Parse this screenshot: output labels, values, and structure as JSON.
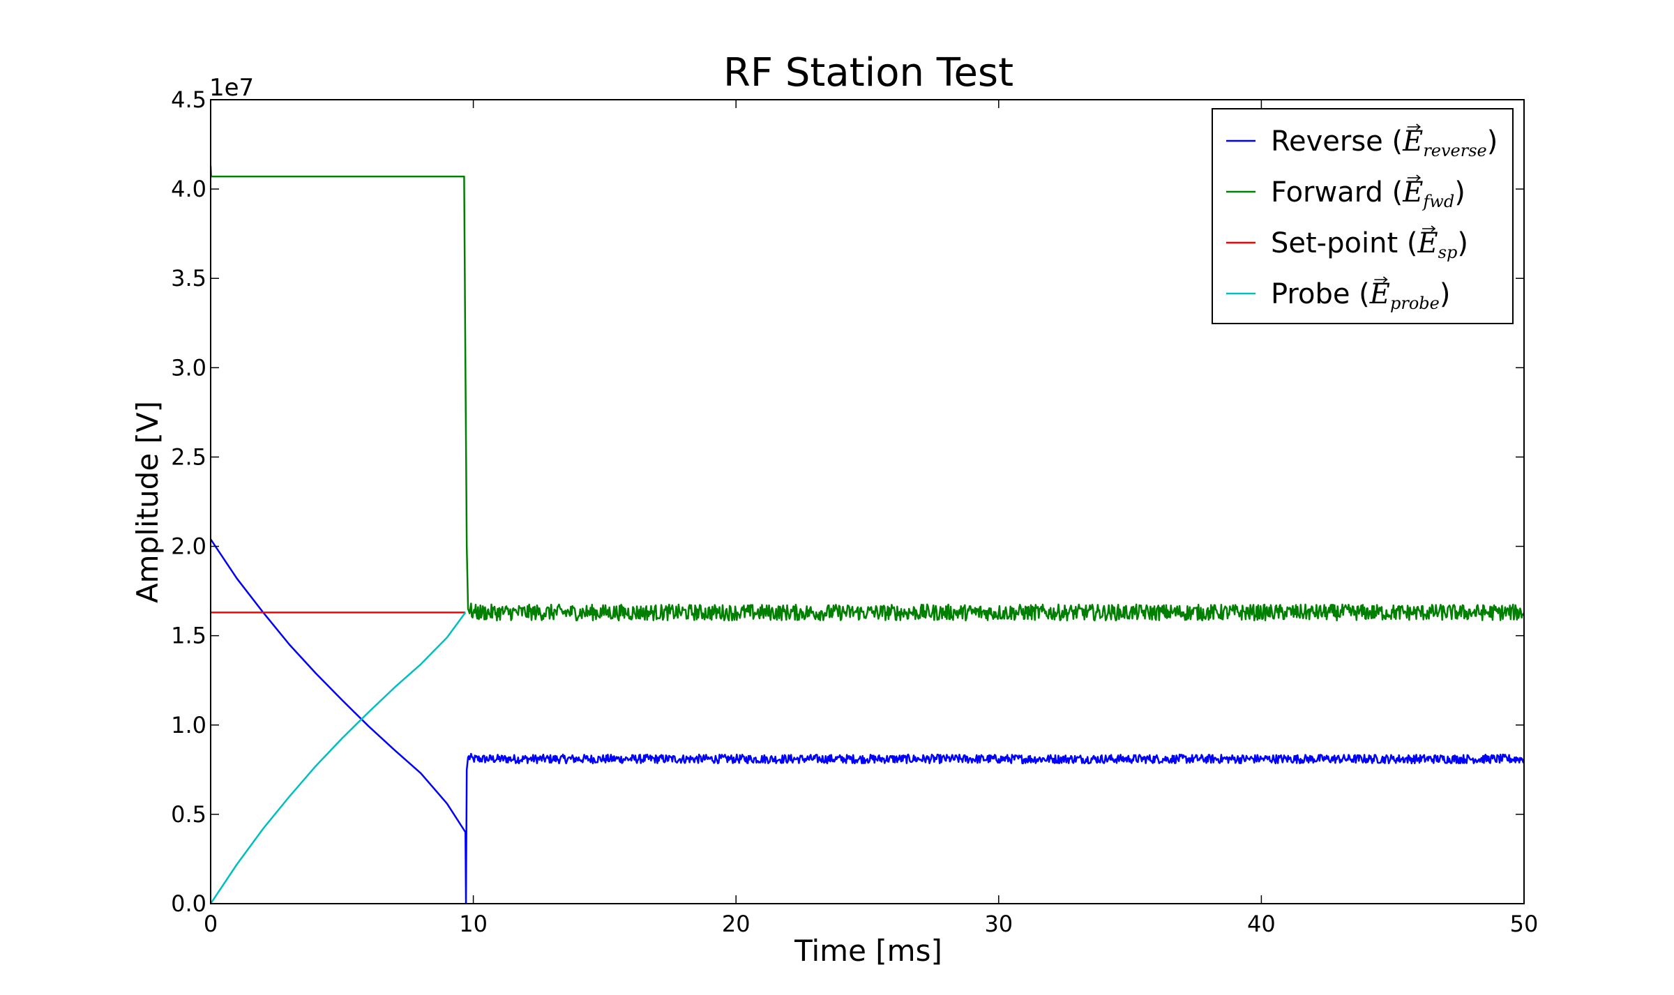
{
  "chart_data": {
    "type": "line",
    "title": "RF Station Test",
    "xlabel": "Time [ms]",
    "ylabel": "Amplitude [V]",
    "y_offset_text": "1e7",
    "xlim": [
      0,
      50
    ],
    "ylim": [
      0,
      45000000
    ],
    "x_ticks": [
      0,
      10,
      20,
      30,
      40,
      50
    ],
    "x_tick_labels": [
      "0",
      "10",
      "20",
      "30",
      "40",
      "50"
    ],
    "y_ticks": [
      0,
      5000000,
      10000000,
      15000000,
      20000000,
      25000000,
      30000000,
      35000000,
      40000000,
      45000000
    ],
    "y_tick_labels": [
      "0.0",
      "0.5",
      "1.0",
      "1.5",
      "2.0",
      "2.5",
      "3.0",
      "3.5",
      "4.0",
      "4.5"
    ],
    "grid": false,
    "legend_position": "top-right",
    "series": [
      {
        "name": "Reverse",
        "legend_math_base": "E",
        "legend_math_sub": "reverse",
        "color": "#0000ff",
        "x": [
          0,
          1,
          2,
          3,
          4,
          5,
          6,
          7,
          8,
          9,
          9.7,
          9.72,
          9.75,
          9.8,
          10,
          15,
          20,
          25,
          30,
          35,
          40,
          45,
          50
        ],
        "y": [
          20400000,
          18200000,
          16300000,
          14500000,
          12900000,
          11400000,
          9950000,
          8600000,
          7300000,
          5600000,
          4000000,
          0,
          7500000,
          8200000,
          8100000,
          8100000,
          8100000,
          8100000,
          8100000,
          8100000,
          8100000,
          8100000,
          8100000
        ],
        "noise_after_x": 9.8,
        "noise_amplitude": 250000
      },
      {
        "name": "Forward",
        "legend_math_base": "E",
        "legend_math_sub": "fwd",
        "color": "#008000",
        "x": [
          0,
          0.02,
          9.65,
          9.7,
          9.75,
          9.8,
          10,
          15,
          20,
          25,
          30,
          35,
          40,
          45,
          50
        ],
        "y": [
          41300000,
          40700000,
          40700000,
          30000000,
          20000000,
          16500000,
          16300000,
          16300000,
          16300000,
          16300000,
          16300000,
          16300000,
          16300000,
          16300000,
          16300000
        ],
        "noise_after_x": 9.8,
        "noise_amplitude": 450000
      },
      {
        "name": "Set-point",
        "legend_math_base": "E",
        "legend_math_sub": "sp",
        "color": "#ff0000",
        "x": [
          0,
          9.7
        ],
        "y": [
          16300000,
          16300000
        ]
      },
      {
        "name": "Probe",
        "legend_math_base": "E",
        "legend_math_sub": "probe",
        "color": "#00bfbf",
        "x": [
          0,
          1,
          2,
          3,
          4,
          5,
          6,
          7,
          8,
          9,
          9.7
        ],
        "y": [
          0,
          2200000,
          4200000,
          6000000,
          7700000,
          9250000,
          10700000,
          12100000,
          13400000,
          14900000,
          16300000
        ]
      }
    ]
  }
}
